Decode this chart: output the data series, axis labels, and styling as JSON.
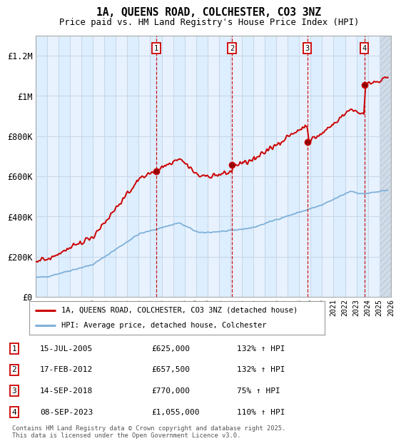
{
  "title1": "1A, QUEENS ROAD, COLCHESTER, CO3 3NZ",
  "title2": "Price paid vs. HM Land Registry's House Price Index (HPI)",
  "legend_line1": "1A, QUEENS ROAD, COLCHESTER, CO3 3NZ (detached house)",
  "legend_line2": "HPI: Average price, detached house, Colchester",
  "footer": "Contains HM Land Registry data © Crown copyright and database right 2025.\nThis data is licensed under the Open Government Licence v3.0.",
  "transactions": [
    {
      "num": 1,
      "date": "15-JUL-2005",
      "price": "£625,000",
      "pct": "132% ↑ HPI"
    },
    {
      "num": 2,
      "date": "17-FEB-2012",
      "price": "£657,500",
      "pct": "132% ↑ HPI"
    },
    {
      "num": 3,
      "date": "14-SEP-2018",
      "price": "£770,000",
      "pct": "75% ↑ HPI"
    },
    {
      "num": 4,
      "date": "08-SEP-2023",
      "price": "£1,055,000",
      "pct": "110% ↑ HPI"
    }
  ],
  "transaction_years": [
    2005.54,
    2012.13,
    2018.71,
    2023.69
  ],
  "transaction_prices": [
    625000,
    657500,
    770000,
    1055000
  ],
  "red_line_color": "#cc0000",
  "blue_line_color": "#7fb0d8",
  "bg_color_even": "#ddeeff",
  "bg_color_odd": "#e8f2ff",
  "plot_bg": "#e8f2ff",
  "grid_color": "#c8d8e8",
  "vline_color": "#cc0000",
  "marker_box_color": "#cc0000",
  "ylim": [
    0,
    1300000
  ],
  "yticks": [
    0,
    200000,
    400000,
    600000,
    800000,
    1000000,
    1200000
  ],
  "ytick_labels": [
    "£0",
    "£200K",
    "£400K",
    "£600K",
    "£800K",
    "£1M",
    "£1.2M"
  ],
  "xstart_year": 1995,
  "xend_year": 2026
}
